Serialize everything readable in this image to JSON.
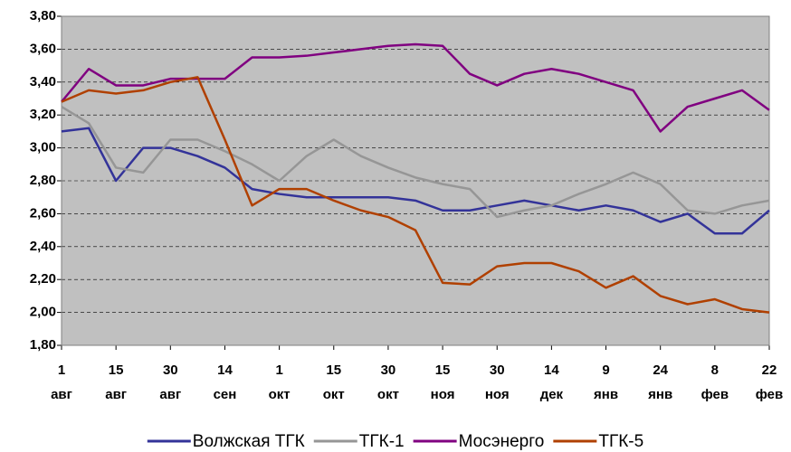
{
  "chart_data": {
    "type": "line",
    "x": [
      0,
      0.5,
      1,
      1.5,
      2,
      2.5,
      3,
      3.5,
      4,
      4.5,
      5,
      5.5,
      6,
      6.5,
      7,
      7.5,
      8,
      8.5,
      9,
      9.5,
      10,
      10.5,
      11,
      11.5,
      12,
      12.5,
      13
    ],
    "xlim": [
      0,
      13
    ],
    "xticks": [
      {
        "value": 0,
        "label": "1 авг"
      },
      {
        "value": 1,
        "label": "15 авг"
      },
      {
        "value": 2,
        "label": "30 авг"
      },
      {
        "value": 3,
        "label": "14 сен"
      },
      {
        "value": 4,
        "label": "1 окт"
      },
      {
        "value": 5,
        "label": "15 окт"
      },
      {
        "value": 6,
        "label": "30 окт"
      },
      {
        "value": 7,
        "label": "15 ноя"
      },
      {
        "value": 8,
        "label": "30 ноя"
      },
      {
        "value": 9,
        "label": "14 дек"
      },
      {
        "value": 10,
        "label": "9 янв"
      },
      {
        "value": 11,
        "label": "24 янв"
      },
      {
        "value": 12,
        "label": "8 фев"
      },
      {
        "value": 13,
        "label": "22 фев"
      }
    ],
    "ylim": [
      1.8,
      3.8
    ],
    "yticks": [
      {
        "value": 1.8,
        "label": "1,80"
      },
      {
        "value": 2.0,
        "label": "2,00"
      },
      {
        "value": 2.2,
        "label": "2,20"
      },
      {
        "value": 2.4,
        "label": "2,40"
      },
      {
        "value": 2.6,
        "label": "2,60"
      },
      {
        "value": 2.8,
        "label": "2,80"
      },
      {
        "value": 3.0,
        "label": "3,00"
      },
      {
        "value": 3.2,
        "label": "3,20"
      },
      {
        "value": 3.4,
        "label": "3,40"
      },
      {
        "value": 3.6,
        "label": "3,60"
      },
      {
        "value": 3.8,
        "label": "3,80"
      }
    ],
    "grid": true,
    "legend": "bottom",
    "series": [
      {
        "name": "Волжская ТГК",
        "color": "#333399",
        "values": [
          3.1,
          3.12,
          2.8,
          3.0,
          3.0,
          2.95,
          2.88,
          2.75,
          2.72,
          2.7,
          2.7,
          2.7,
          2.7,
          2.68,
          2.62,
          2.62,
          2.65,
          2.68,
          2.65,
          2.62,
          2.65,
          2.62,
          2.55,
          2.6,
          2.48,
          2.48,
          2.62
        ]
      },
      {
        "name": "ТГК-1",
        "color": "#969696",
        "values": [
          3.25,
          3.15,
          2.88,
          2.85,
          3.05,
          3.05,
          2.98,
          2.9,
          2.8,
          2.95,
          3.05,
          2.95,
          2.88,
          2.82,
          2.78,
          2.75,
          2.58,
          2.62,
          2.65,
          2.72,
          2.78,
          2.85,
          2.78,
          2.62,
          2.6,
          2.65,
          2.68
        ]
      },
      {
        "name": "Мосэнерго",
        "color": "#800080",
        "values": [
          3.28,
          3.48,
          3.38,
          3.38,
          3.42,
          3.42,
          3.42,
          3.55,
          3.55,
          3.56,
          3.58,
          3.6,
          3.62,
          3.63,
          3.62,
          3.45,
          3.38,
          3.45,
          3.48,
          3.45,
          3.4,
          3.35,
          3.1,
          3.25,
          3.3,
          3.35,
          3.23
        ]
      },
      {
        "name": "ТГК-5",
        "color": "#b04000",
        "values": [
          3.28,
          3.35,
          3.33,
          3.35,
          3.4,
          3.43,
          3.05,
          2.65,
          2.75,
          2.75,
          2.68,
          2.62,
          2.58,
          2.5,
          2.18,
          2.17,
          2.28,
          2.3,
          2.3,
          2.25,
          2.15,
          2.22,
          2.1,
          2.05,
          2.08,
          2.02,
          2.0
        ]
      }
    ]
  }
}
